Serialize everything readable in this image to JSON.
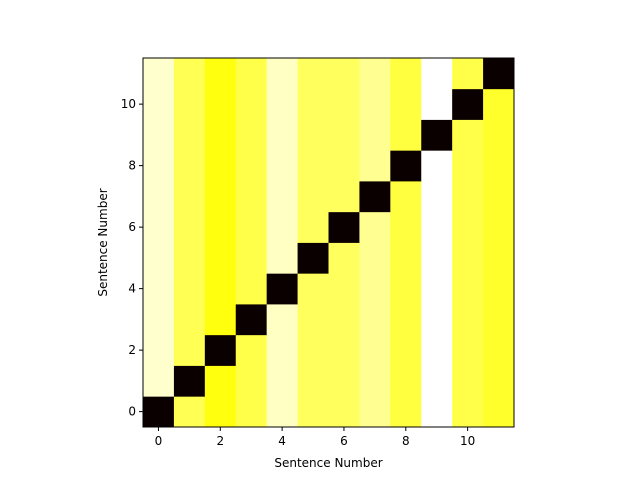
{
  "chart_data": {
    "type": "heatmap",
    "title": "",
    "xlabel": "Sentence Number",
    "ylabel": "Sentence Number",
    "x_ticks": [
      0,
      2,
      4,
      6,
      8,
      10
    ],
    "y_ticks": [
      0,
      2,
      4,
      6,
      8,
      10
    ],
    "xlim": [
      -0.5,
      11.5
    ],
    "ylim": [
      -0.5,
      11.5
    ],
    "colormap": "hot",
    "rows": [
      [
        0.0,
        0.83,
        0.76,
        0.82,
        0.94,
        0.84,
        0.84,
        0.89,
        0.81,
        1.0,
        0.82,
        0.79
      ],
      [
        0.95,
        0.0,
        0.76,
        0.82,
        0.94,
        0.84,
        0.84,
        0.89,
        0.81,
        1.0,
        0.82,
        0.79
      ],
      [
        0.95,
        0.83,
        0.0,
        0.82,
        0.94,
        0.84,
        0.84,
        0.89,
        0.81,
        1.0,
        0.82,
        0.79
      ],
      [
        0.95,
        0.83,
        0.76,
        0.0,
        0.94,
        0.84,
        0.84,
        0.89,
        0.81,
        1.0,
        0.82,
        0.79
      ],
      [
        0.95,
        0.83,
        0.76,
        0.82,
        0.0,
        0.84,
        0.84,
        0.89,
        0.81,
        1.0,
        0.82,
        0.79
      ],
      [
        0.95,
        0.83,
        0.76,
        0.82,
        0.94,
        0.0,
        0.84,
        0.89,
        0.81,
        1.0,
        0.82,
        0.79
      ],
      [
        0.95,
        0.83,
        0.76,
        0.82,
        0.94,
        0.84,
        0.0,
        0.89,
        0.81,
        1.0,
        0.82,
        0.79
      ],
      [
        0.95,
        0.83,
        0.76,
        0.82,
        0.94,
        0.84,
        0.84,
        0.0,
        0.81,
        1.0,
        0.82,
        0.79
      ],
      [
        0.95,
        0.83,
        0.76,
        0.82,
        0.94,
        0.84,
        0.84,
        0.89,
        0.0,
        1.0,
        0.82,
        0.79
      ],
      [
        0.95,
        0.83,
        0.76,
        0.82,
        0.94,
        0.84,
        0.84,
        0.89,
        0.81,
        0.0,
        0.82,
        0.79
      ],
      [
        0.95,
        0.83,
        0.76,
        0.82,
        0.94,
        0.84,
        0.84,
        0.89,
        0.81,
        1.0,
        0.0,
        0.79
      ],
      [
        0.95,
        0.83,
        0.76,
        0.82,
        0.94,
        0.84,
        0.84,
        0.89,
        0.81,
        1.0,
        0.82,
        0.0
      ]
    ]
  }
}
